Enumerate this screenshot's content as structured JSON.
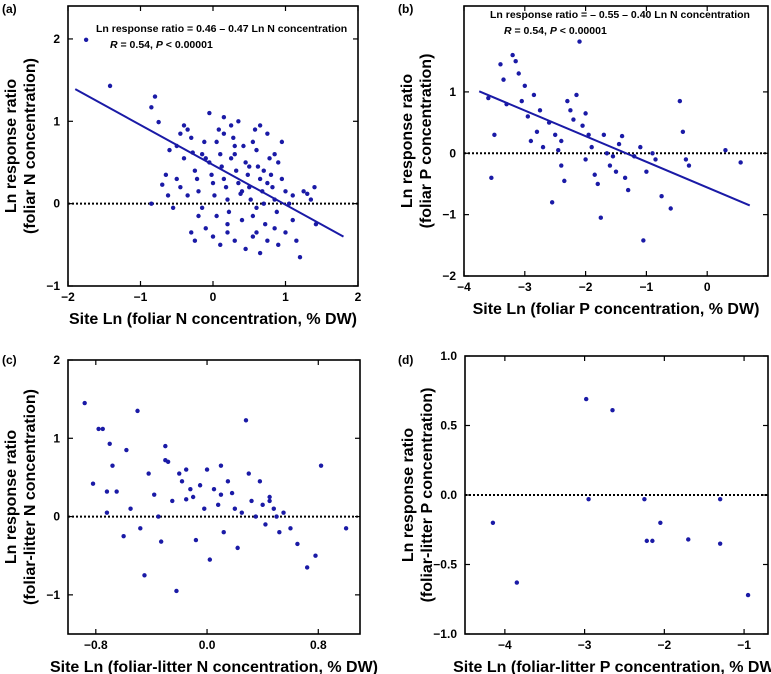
{
  "chart_data": [
    {
      "panel": "(a)",
      "type": "scatter",
      "xlabel": "Site Ln (foliar N concentration, % DW)",
      "ylabel": [
        "Ln response  ratio",
        "(foliar N concentration)"
      ],
      "xlim": [
        -2,
        2
      ],
      "ylim": [
        -1,
        2.4
      ],
      "xticks": [
        -2,
        -1,
        0,
        1,
        2
      ],
      "yticks": [
        -1,
        0,
        1,
        2
      ],
      "xtick_labels": [
        "−2",
        "−1",
        "0",
        "1",
        "2"
      ],
      "ytick_labels": [
        "−1",
        "0",
        "1",
        "2"
      ],
      "zero_line": 0,
      "fit_line": {
        "x": [
          -1.9,
          1.8
        ],
        "y": [
          1.39,
          -0.4
        ]
      },
      "annotation": {
        "line1": "Ln response ratio = 0.46 – 0.47 Ln N concentration",
        "r_label": "R",
        "r_text": " = 0.54, ",
        "p_label": "P",
        "p_text": " < 0.00001"
      },
      "points": [
        [
          -1.75,
          1.99
        ],
        [
          -1.42,
          1.43
        ],
        [
          -0.85,
          1.17
        ],
        [
          -0.8,
          1.3
        ],
        [
          -0.75,
          0.99
        ],
        [
          -0.85,
          0.0
        ],
        [
          -0.7,
          0.23
        ],
        [
          -0.65,
          0.35
        ],
        [
          -0.62,
          0.1
        ],
        [
          -0.55,
          -0.05
        ],
        [
          -0.5,
          0.7
        ],
        [
          -0.45,
          0.85
        ],
        [
          -0.4,
          0.95
        ],
        [
          -0.35,
          0.9
        ],
        [
          -0.3,
          0.8
        ],
        [
          -0.28,
          0.62
        ],
        [
          -0.25,
          0.4
        ],
        [
          -0.22,
          0.3
        ],
        [
          -0.2,
          0.15
        ],
        [
          -0.15,
          -0.05
        ],
        [
          -0.12,
          0.75
        ],
        [
          -0.1,
          0.55
        ],
        [
          -0.05,
          0.5
        ],
        [
          -0.02,
          0.35
        ],
        [
          0.0,
          0.25
        ],
        [
          0.02,
          0.1
        ],
        [
          0.05,
          -0.15
        ],
        [
          0.08,
          0.9
        ],
        [
          0.1,
          0.6
        ],
        [
          0.12,
          0.45
        ],
        [
          0.15,
          0.3
        ],
        [
          0.18,
          0.2
        ],
        [
          0.2,
          0.05
        ],
        [
          0.22,
          -0.1
        ],
        [
          0.25,
          0.95
        ],
        [
          0.28,
          0.8
        ],
        [
          0.3,
          0.6
        ],
        [
          0.32,
          0.4
        ],
        [
          0.35,
          0.25
        ],
        [
          0.38,
          0.12
        ],
        [
          0.4,
          -0.2
        ],
        [
          0.42,
          0.7
        ],
        [
          0.45,
          0.5
        ],
        [
          0.48,
          0.35
        ],
        [
          0.5,
          0.2
        ],
        [
          0.52,
          0.05
        ],
        [
          0.55,
          -0.15
        ],
        [
          0.58,
          0.9
        ],
        [
          0.6,
          0.65
        ],
        [
          0.62,
          0.45
        ],
        [
          0.65,
          0.3
        ],
        [
          0.68,
          0.15
        ],
        [
          0.7,
          0.0
        ],
        [
          0.72,
          -0.25
        ],
        [
          0.75,
          0.85
        ],
        [
          0.78,
          0.55
        ],
        [
          0.8,
          0.35
        ],
        [
          0.82,
          0.2
        ],
        [
          0.85,
          0.05
        ],
        [
          0.88,
          -0.1
        ],
        [
          0.9,
          0.5
        ],
        [
          0.95,
          0.3
        ],
        [
          1.0,
          0.15
        ],
        [
          1.05,
          0.0
        ],
        [
          1.1,
          -0.2
        ],
        [
          1.15,
          -0.45
        ],
        [
          1.2,
          -0.65
        ],
        [
          1.25,
          0.15
        ],
        [
          1.3,
          0.12
        ],
        [
          1.35,
          0.05
        ],
        [
          1.4,
          0.2
        ],
        [
          1.42,
          -0.25
        ],
        [
          -0.3,
          -0.35
        ],
        [
          -0.25,
          -0.45
        ],
        [
          -0.1,
          -0.3
        ],
        [
          0.0,
          -0.4
        ],
        [
          0.1,
          -0.5
        ],
        [
          0.2,
          -0.35
        ],
        [
          0.3,
          -0.45
        ],
        [
          0.45,
          -0.55
        ],
        [
          0.55,
          -0.4
        ],
        [
          0.65,
          -0.6
        ],
        [
          0.75,
          -0.45
        ],
        [
          0.85,
          -0.3
        ],
        [
          -0.4,
          0.55
        ],
        [
          -0.6,
          0.65
        ],
        [
          -0.05,
          1.1
        ],
        [
          0.15,
          1.05
        ],
        [
          0.35,
          1.0
        ],
        [
          0.55,
          0.75
        ],
        [
          -0.35,
          0.1
        ],
        [
          0.6,
          -0.05
        ],
        [
          0.9,
          -0.5
        ],
        [
          1.0,
          -0.35
        ],
        [
          -0.2,
          -0.15
        ],
        [
          0.4,
          0.15
        ],
        [
          0.5,
          0.45
        ],
        [
          0.3,
          0.7
        ],
        [
          -0.15,
          0.6
        ],
        [
          0.05,
          0.75
        ],
        [
          0.25,
          0.55
        ],
        [
          0.7,
          0.4
        ],
        [
          0.85,
          0.6
        ],
        [
          0.95,
          0.75
        ],
        [
          -0.5,
          0.3
        ],
        [
          -0.45,
          0.2
        ],
        [
          0.15,
          0.85
        ],
        [
          0.65,
          0.95
        ],
        [
          0.75,
          0.25
        ],
        [
          0.2,
          -0.25
        ],
        [
          0.6,
          -0.35
        ],
        [
          1.1,
          0.1
        ]
      ]
    },
    {
      "panel": "(b)",
      "type": "scatter",
      "xlabel": "Site Ln (foliar P concentration, % DW)",
      "ylabel": [
        "Ln response  ratio",
        "(foliar  P concentration)"
      ],
      "xlim": [
        -4,
        1
      ],
      "ylim": [
        -2,
        2.4
      ],
      "xticks": [
        -4,
        -3,
        -2,
        -1,
        0
      ],
      "yticks": [
        -2,
        -1,
        0,
        1
      ],
      "xtick_labels": [
        "−4",
        "−3",
        "−2",
        "−1",
        "0"
      ],
      "ytick_labels": [
        "−2",
        "−1",
        "0",
        "1"
      ],
      "zero_line": 0,
      "fit_line": {
        "x": [
          -3.75,
          0.7
        ],
        "y": [
          1.01,
          -0.85
        ]
      },
      "annotation": {
        "line1": "Ln response ratio = – 0.55 – 0.40 Ln N concentration",
        "r_label": "R",
        "r_text": " = 0.54, ",
        "p_label": "P",
        "p_text": " < 0.00001"
      },
      "points": [
        [
          -3.6,
          0.9
        ],
        [
          -3.5,
          0.3
        ],
        [
          -3.55,
          -0.4
        ],
        [
          -3.4,
          1.45
        ],
        [
          -3.3,
          0.8
        ],
        [
          -3.2,
          1.6
        ],
        [
          -3.15,
          1.5
        ],
        [
          -3.1,
          1.3
        ],
        [
          -3.0,
          1.1
        ],
        [
          -2.95,
          0.6
        ],
        [
          -2.9,
          0.2
        ],
        [
          -2.85,
          0.95
        ],
        [
          -2.8,
          0.35
        ],
        [
          -2.75,
          0.7
        ],
        [
          -2.7,
          0.1
        ],
        [
          -2.6,
          0.5
        ],
        [
          -2.55,
          -0.8
        ],
        [
          -2.5,
          0.3
        ],
        [
          -2.45,
          0.05
        ],
        [
          -2.4,
          -0.2
        ],
        [
          -2.35,
          -0.45
        ],
        [
          -2.3,
          0.85
        ],
        [
          -2.25,
          0.7
        ],
        [
          -2.2,
          0.55
        ],
        [
          -2.15,
          0.95
        ],
        [
          -2.1,
          1.82
        ],
        [
          -2.05,
          0.45
        ],
        [
          -2.0,
          0.65
        ],
        [
          -1.95,
          0.3
        ],
        [
          -1.9,
          0.1
        ],
        [
          -1.85,
          -0.35
        ],
        [
          -1.8,
          -0.5
        ],
        [
          -1.75,
          -1.05
        ],
        [
          -1.7,
          0.3
        ],
        [
          -1.65,
          0.0
        ],
        [
          -1.6,
          -0.2
        ],
        [
          -1.55,
          -0.05
        ],
        [
          -1.5,
          -0.3
        ],
        [
          -1.45,
          0.15
        ],
        [
          -1.4,
          0.28
        ],
        [
          -1.35,
          -0.4
        ],
        [
          -1.3,
          -0.6
        ],
        [
          -1.2,
          -0.05
        ],
        [
          -1.1,
          0.1
        ],
        [
          -1.05,
          -1.42
        ],
        [
          -1.0,
          -0.3
        ],
        [
          -0.9,
          0.0
        ],
        [
          -0.85,
          -0.1
        ],
        [
          -0.75,
          -0.7
        ],
        [
          -0.6,
          -0.9
        ],
        [
          -0.45,
          0.85
        ],
        [
          -0.4,
          0.35
        ],
        [
          -0.35,
          -0.1
        ],
        [
          -0.3,
          -0.2
        ],
        [
          0.3,
          0.05
        ],
        [
          0.55,
          -0.15
        ],
        [
          -3.35,
          1.2
        ],
        [
          -3.05,
          0.85
        ],
        [
          -2.4,
          0.2
        ],
        [
          -2.0,
          -0.1
        ]
      ]
    },
    {
      "panel": "(c)",
      "type": "scatter",
      "xlabel": "Site Ln (foliar-litter  N concentration, % DW)",
      "ylabel": [
        "Ln response  ratio",
        "(foliar-litter N concentration)"
      ],
      "xlim": [
        -1.0,
        1.1
      ],
      "ylim": [
        -1.5,
        2
      ],
      "xticks": [
        -0.8,
        0.0,
        0.8
      ],
      "yticks": [
        -1,
        0,
        1,
        2
      ],
      "xtick_labels": [
        "−0.8",
        "0.0",
        "0.8"
      ],
      "ytick_labels": [
        "−1",
        "0",
        "1",
        "2"
      ],
      "zero_line": 0,
      "points": [
        [
          -0.88,
          1.45
        ],
        [
          -0.82,
          0.42
        ],
        [
          -0.78,
          1.12
        ],
        [
          -0.75,
          1.12
        ],
        [
          -0.72,
          0.32
        ],
        [
          -0.72,
          0.05
        ],
        [
          -0.7,
          0.93
        ],
        [
          -0.68,
          0.65
        ],
        [
          -0.65,
          0.32
        ],
        [
          -0.6,
          -0.25
        ],
        [
          -0.58,
          0.85
        ],
        [
          -0.55,
          0.1
        ],
        [
          -0.5,
          1.35
        ],
        [
          -0.48,
          -0.15
        ],
        [
          -0.45,
          -0.75
        ],
        [
          -0.42,
          0.55
        ],
        [
          -0.38,
          0.28
        ],
        [
          -0.35,
          0.0
        ],
        [
          -0.33,
          -0.32
        ],
        [
          -0.3,
          0.9
        ],
        [
          -0.28,
          0.7
        ],
        [
          -0.25,
          0.2
        ],
        [
          -0.22,
          -0.95
        ],
        [
          -0.2,
          0.55
        ],
        [
          -0.18,
          0.45
        ],
        [
          -0.15,
          0.6
        ],
        [
          -0.12,
          0.35
        ],
        [
          -0.1,
          0.25
        ],
        [
          -0.08,
          -0.3
        ],
        [
          -0.05,
          0.4
        ],
        [
          -0.02,
          0.1
        ],
        [
          0.0,
          0.6
        ],
        [
          0.02,
          -0.55
        ],
        [
          0.05,
          0.35
        ],
        [
          0.08,
          0.15
        ],
        [
          0.1,
          0.65
        ],
        [
          0.12,
          -0.2
        ],
        [
          0.15,
          0.45
        ],
        [
          0.18,
          0.3
        ],
        [
          0.2,
          0.1
        ],
        [
          0.22,
          -0.4
        ],
        [
          0.25,
          0.05
        ],
        [
          0.28,
          1.23
        ],
        [
          0.3,
          0.55
        ],
        [
          0.32,
          0.2
        ],
        [
          0.35,
          0.0
        ],
        [
          0.38,
          0.45
        ],
        [
          0.4,
          0.15
        ],
        [
          0.42,
          -0.1
        ],
        [
          0.45,
          0.25
        ],
        [
          0.48,
          0.1
        ],
        [
          0.5,
          0.0
        ],
        [
          0.52,
          -0.2
        ],
        [
          0.55,
          0.05
        ],
        [
          0.6,
          -0.15
        ],
        [
          0.65,
          -0.35
        ],
        [
          0.72,
          -0.65
        ],
        [
          0.78,
          -0.5
        ],
        [
          0.82,
          0.65
        ],
        [
          1.0,
          -0.15
        ],
        [
          -0.3,
          0.72
        ],
        [
          0.1,
          0.28
        ],
        [
          0.45,
          0.2
        ],
        [
          -0.15,
          0.22
        ]
      ]
    },
    {
      "panel": "(d)",
      "type": "scatter",
      "xlabel": "Site Ln (foliar-litter P concentration, % DW)",
      "ylabel": [
        "Ln response  ratio",
        "(foliar-litter P concentration)"
      ],
      "xlim": [
        -4.5,
        -0.7
      ],
      "ylim": [
        -1.0,
        1.0
      ],
      "xticks": [
        -4,
        -3,
        -2,
        -1
      ],
      "yticks": [
        -1.0,
        -0.5,
        0.0,
        0.5,
        1.0
      ],
      "xtick_labels": [
        "−4",
        "−3",
        "−2",
        "−1"
      ],
      "ytick_labels": [
        "−1.0",
        "−0.5",
        "0.0",
        "0.5",
        "1.0"
      ],
      "zero_line": 0,
      "points": [
        [
          -4.15,
          -0.2
        ],
        [
          -3.85,
          -0.63
        ],
        [
          -2.98,
          0.69
        ],
        [
          -2.95,
          -0.03
        ],
        [
          -2.65,
          0.61
        ],
        [
          -2.25,
          -0.03
        ],
        [
          -2.22,
          -0.33
        ],
        [
          -2.15,
          -0.33
        ],
        [
          -2.05,
          -0.2
        ],
        [
          -1.7,
          -0.32
        ],
        [
          -1.3,
          -0.03
        ],
        [
          -1.3,
          -0.35
        ],
        [
          -0.95,
          -0.72
        ]
      ]
    }
  ]
}
